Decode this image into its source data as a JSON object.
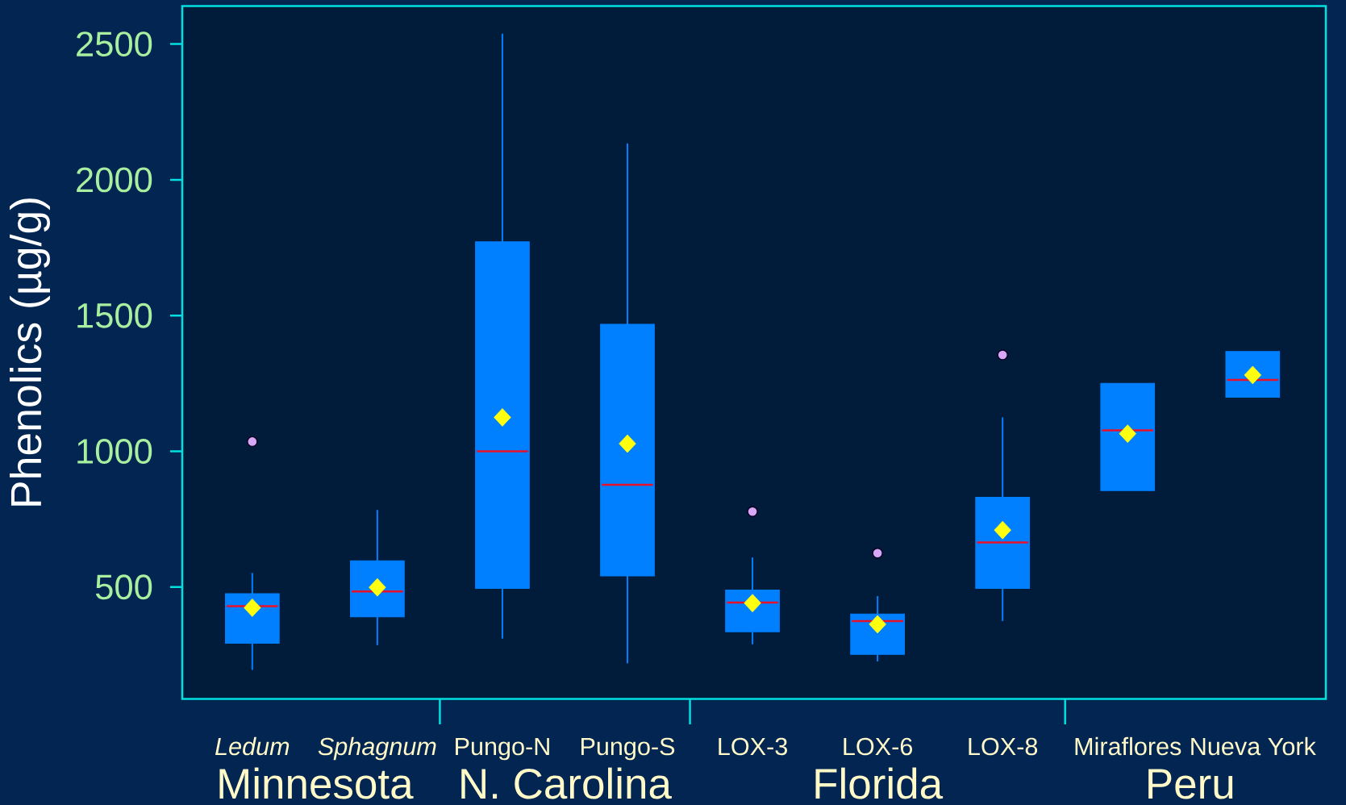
{
  "chart_data": {
    "type": "box",
    "ylabel": "Phenolics (µg/g)",
    "categories": [
      "*Ledum*",
      "*Sphagnum*",
      "Pungo-N",
      "Pungo-S",
      "LOX-3",
      "LOX-6",
      "LOX-8",
      "Miraflores",
      "Nueva York"
    ],
    "color": "#0080ff",
    "boxes": [
      {
        "low": 195,
        "q1": 293,
        "median": 430,
        "q3": 476,
        "high": 552,
        "mean": 424,
        "outliers": [
          1036
        ]
      },
      {
        "low": 286,
        "q1": 390,
        "median": 484,
        "q3": 597,
        "high": 784,
        "mean": 499
      },
      {
        "low": 310,
        "q1": 495,
        "median": 1000,
        "q3": 1772,
        "high": 2538,
        "mean": 1125
      },
      {
        "low": 219,
        "q1": 541,
        "median": 877,
        "q3": 1468,
        "high": 2134,
        "mean": 1028
      },
      {
        "low": 289,
        "q1": 335,
        "median": 443,
        "q3": 489,
        "high": 609,
        "mean": 441,
        "outliers": [
          778
        ]
      },
      {
        "low": 226,
        "q1": 252,
        "median": 375,
        "q3": 401,
        "high": 467,
        "mean": 363,
        "outliers": [
          625
        ]
      },
      {
        "low": 375,
        "q1": 495,
        "median": 664,
        "q3": 831,
        "high": 1125,
        "mean": 710,
        "outliers": [
          1355
        ]
      },
      {
        "low": 855,
        "q1": 855,
        "median": 1077,
        "q3": 1250,
        "high": 1250,
        "mean": 1065
      },
      {
        "low": 1199,
        "q1": 1199,
        "median": 1263,
        "q3": 1368,
        "high": 1368,
        "mean": 1281
      }
    ],
    "ylim": [
      88,
      2640
    ],
    "yticks": [
      500,
      1000,
      1500,
      2000,
      2500
    ],
    "annotations": [
      "Minnesota",
      "N. Carolina",
      "Florida",
      "Peru"
    ]
  }
}
